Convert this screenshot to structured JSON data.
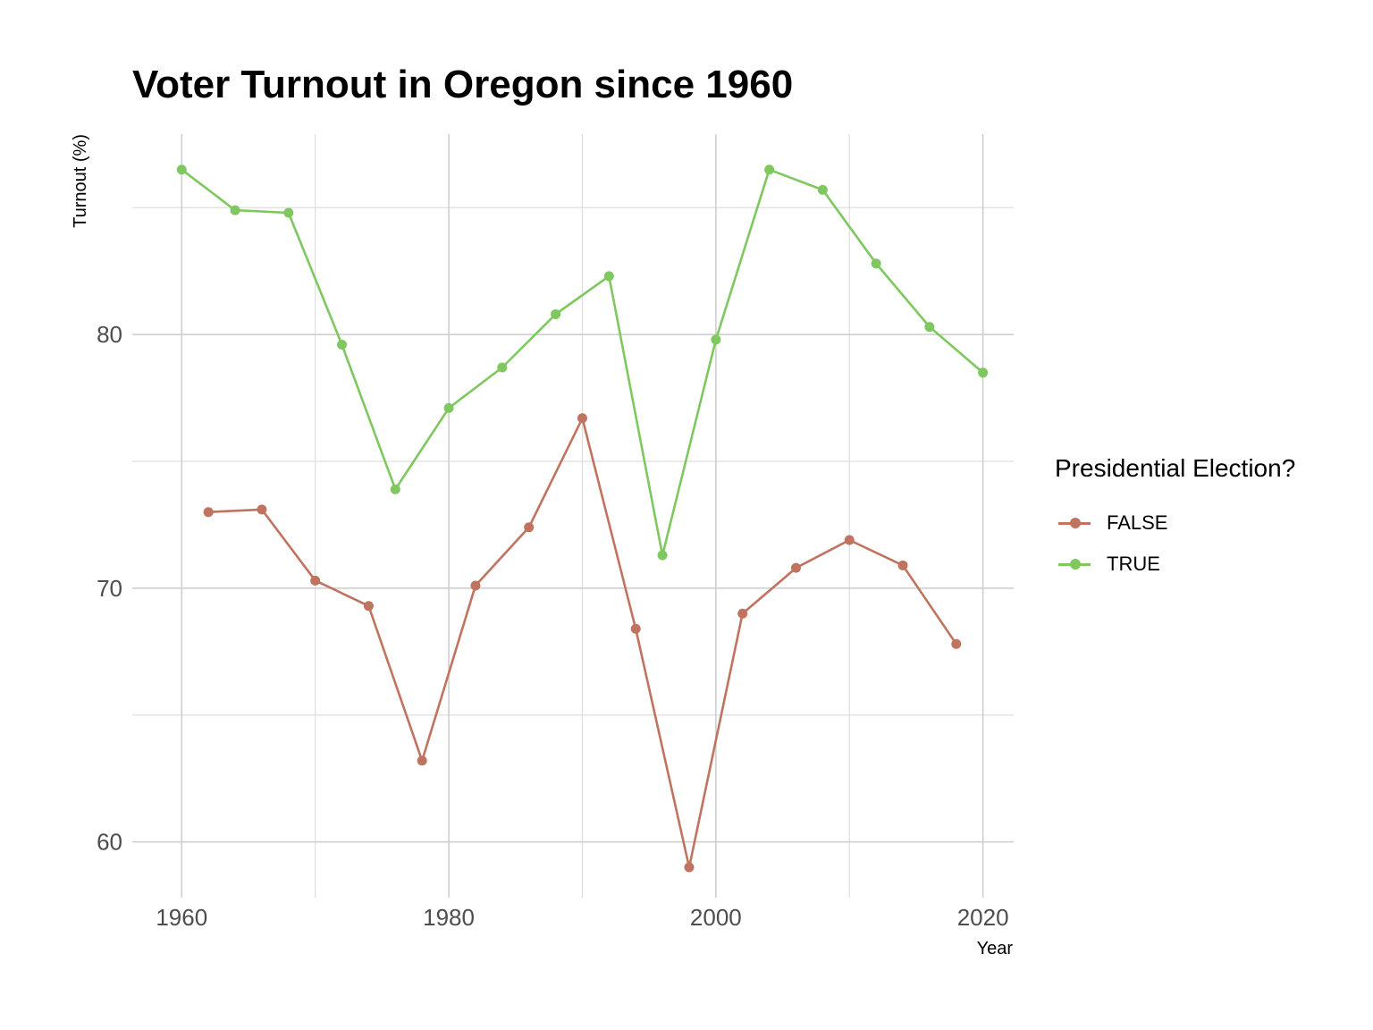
{
  "chart_data": {
    "type": "line",
    "title": "Voter Turnout in Oregon since 1960",
    "xlabel": "Year",
    "ylabel": "Turnout (%)",
    "xlim": [
      1956.3,
      2022.3
    ],
    "ylim": [
      57.8,
      87.9
    ],
    "x_ticks": [
      1960,
      1980,
      2000,
      2020
    ],
    "x_minor_ticks": [
      1970,
      1990,
      2010
    ],
    "y_ticks": [
      60,
      70,
      80
    ],
    "y_minor_ticks": [
      65,
      75,
      85
    ],
    "grid": true,
    "legend": {
      "title": "Presidential Election?",
      "position": "right"
    },
    "series": [
      {
        "name": "FALSE",
        "color": "#c0735f",
        "x": [
          1962,
          1966,
          1970,
          1974,
          1978,
          1982,
          1986,
          1990,
          1994,
          1998,
          2002,
          2006,
          2010,
          2014,
          2018
        ],
        "y": [
          73.0,
          73.1,
          70.3,
          69.3,
          63.2,
          70.1,
          72.4,
          76.7,
          68.4,
          59.0,
          69.0,
          70.8,
          71.9,
          70.9,
          67.8
        ]
      },
      {
        "name": "TRUE",
        "color": "#7ec85f",
        "x": [
          1960,
          1964,
          1968,
          1972,
          1976,
          1980,
          1984,
          1988,
          1992,
          1996,
          2000,
          2004,
          2008,
          2012,
          2016,
          2020
        ],
        "y": [
          86.5,
          84.9,
          84.8,
          79.6,
          73.9,
          77.1,
          78.7,
          80.8,
          82.3,
          71.3,
          79.8,
          86.5,
          85.7,
          82.8,
          80.3,
          78.5
        ]
      }
    ]
  }
}
